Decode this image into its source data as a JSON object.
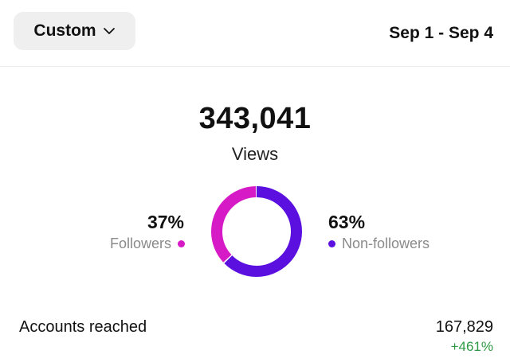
{
  "header": {
    "range_button_label": "Custom",
    "range_icon": "chevron-down-icon",
    "date_range": "Sep 1 - Sep 4"
  },
  "summary": {
    "views_total": "343,041",
    "views_label": "Views"
  },
  "breakdown": {
    "followers": {
      "percent_label": "37%",
      "label": "Followers",
      "color": "#d61ac6",
      "share": 0.37
    },
    "non_followers": {
      "percent_label": "63%",
      "label": "Non-followers",
      "color": "#5b10e0",
      "share": 0.63
    }
  },
  "metrics": [
    {
      "label": "Accounts reached",
      "value": "167,829",
      "change": "+461%",
      "change_color": "#2e9a45"
    }
  ]
}
